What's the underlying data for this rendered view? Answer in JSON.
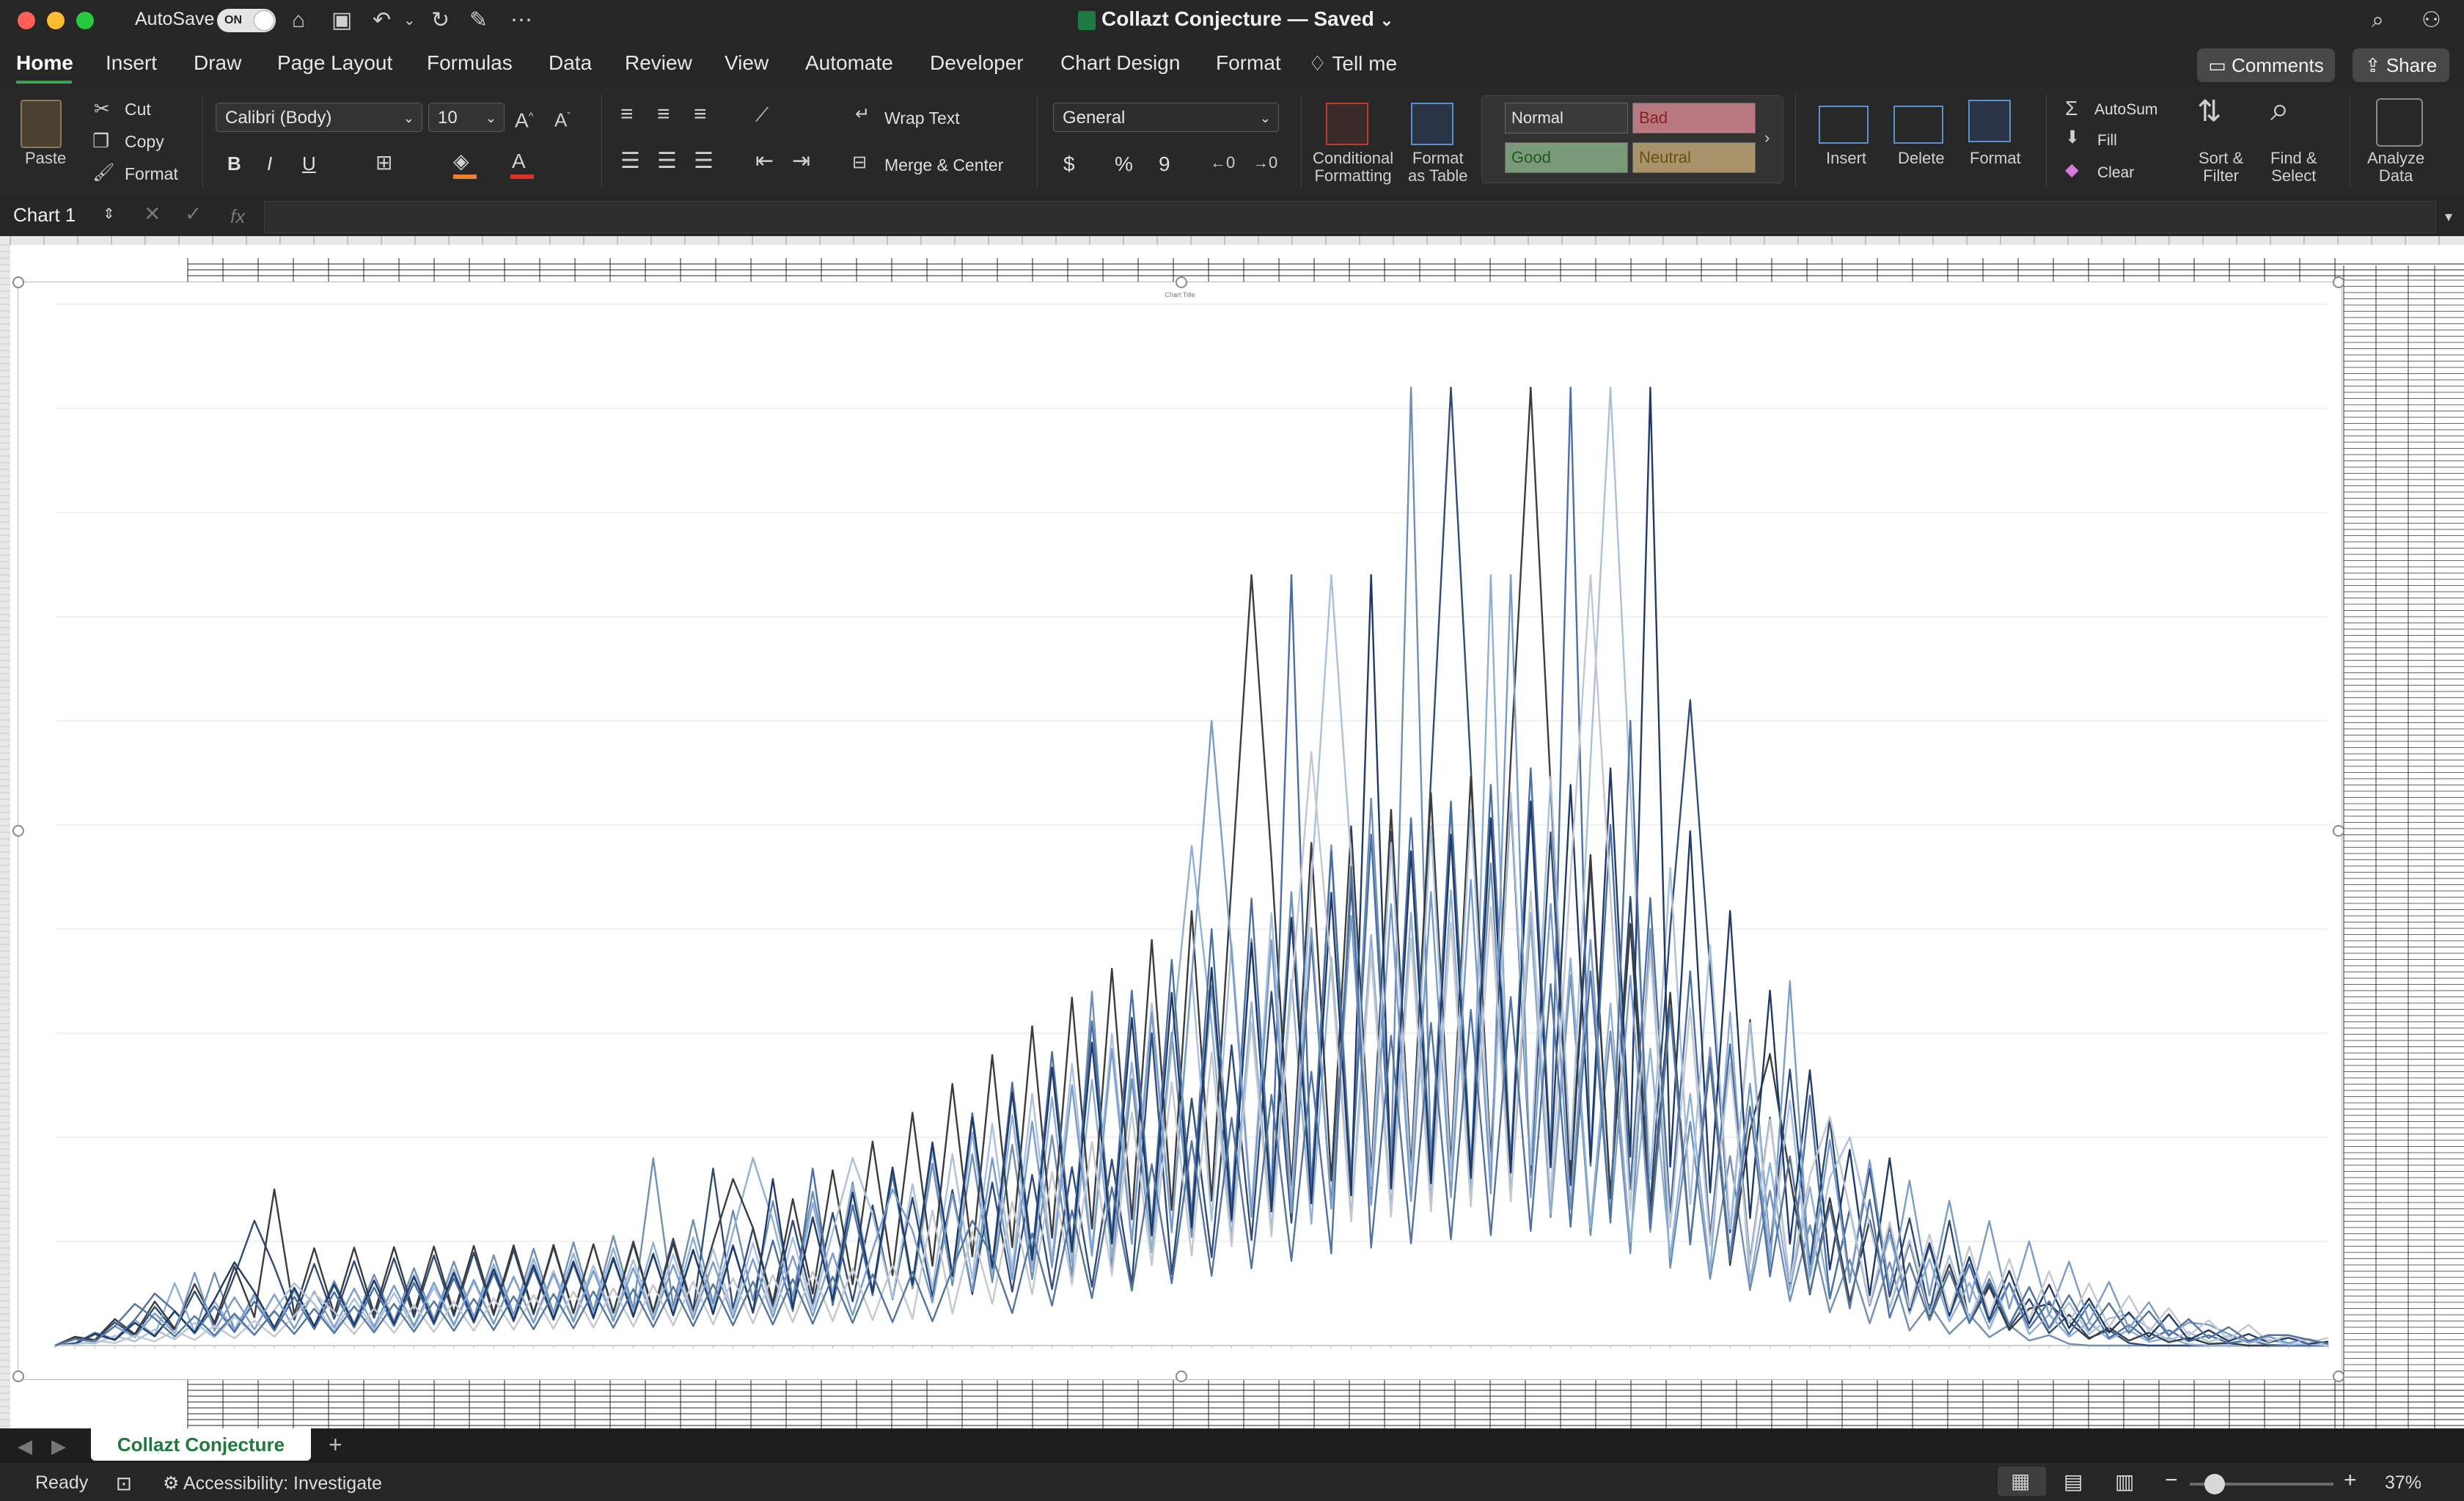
{
  "window": {
    "autosave_label": "AutoSave",
    "autosave_state": "ON",
    "doc_title": "Collazt Conjecture — Saved",
    "doc_title_caret": "⌄"
  },
  "tabs": [
    {
      "label": "Home",
      "active": true
    },
    {
      "label": "Insert"
    },
    {
      "label": "Draw"
    },
    {
      "label": "Page Layout"
    },
    {
      "label": "Formulas"
    },
    {
      "label": "Data"
    },
    {
      "label": "Review"
    },
    {
      "label": "View"
    },
    {
      "label": "Automate"
    },
    {
      "label": "Developer"
    },
    {
      "label": "Chart Design"
    },
    {
      "label": "Format"
    },
    {
      "label": "Tell me"
    }
  ],
  "top_buttons": {
    "comments": "Comments",
    "share": "Share"
  },
  "ribbon": {
    "paste": "Paste",
    "cut": "Cut",
    "copy": "Copy",
    "format_painter": "Format",
    "font_name": "Calibri (Body)",
    "font_size": "10",
    "bold": "B",
    "italic": "I",
    "underline": "U",
    "wrap_text": "Wrap Text",
    "merge_center": "Merge & Center",
    "number_format": "General",
    "currency": "$",
    "percent": "%",
    "comma": "9",
    "conditional_formatting": [
      "Conditional",
      "Formatting"
    ],
    "format_as_table": [
      "Format",
      "as Table"
    ],
    "styles": {
      "normal": "Normal",
      "bad": "Bad",
      "good": "Good",
      "neutral": "Neutral"
    },
    "insert": "Insert",
    "delete": "Delete",
    "format": "Format",
    "autosum": "AutoSum",
    "fill": "Fill",
    "clear": "Clear",
    "sort_filter": [
      "Sort &",
      "Filter"
    ],
    "find_select": [
      "Find &",
      "Select"
    ],
    "analyze_data": [
      "Analyze",
      "Data"
    ]
  },
  "formula_bar": {
    "name_box": "Chart 1",
    "fx": "fx",
    "value": ""
  },
  "chart_data": {
    "type": "line",
    "title": "Chart Title",
    "note": "Dozens of overlapping blue/grey series; values approximated in relative units (0-100 scale).",
    "x_count": 115,
    "ylim": [
      0,
      100
    ],
    "grid": true,
    "series": [
      {
        "name": "",
        "color": "#6f8fb5",
        "peaks": [
          [
            8,
            7
          ],
          [
            30,
            18
          ],
          [
            52,
            34
          ],
          [
            68,
            92
          ],
          [
            80,
            40
          ],
          [
            92,
            8
          ]
        ]
      },
      {
        "name": "",
        "color": "#2f4b78",
        "peaks": [
          [
            10,
            12
          ],
          [
            33,
            17
          ],
          [
            55,
            30
          ],
          [
            70,
            92
          ],
          [
            82,
            62
          ],
          [
            95,
            12
          ]
        ]
      },
      {
        "name": "",
        "color": "#8fb0d6",
        "peaks": [
          [
            6,
            6
          ],
          [
            35,
            18
          ],
          [
            57,
            48
          ],
          [
            72,
            74
          ],
          [
            84,
            32
          ],
          [
            98,
            6
          ]
        ]
      },
      {
        "name": "",
        "color": "#3c3c3c",
        "peaks": [
          [
            11,
            15
          ],
          [
            34,
            16
          ],
          [
            60,
            74
          ],
          [
            74,
            92
          ],
          [
            86,
            28
          ],
          [
            100,
            4
          ]
        ]
      },
      {
        "name": "",
        "color": "#4a6fa5",
        "peaks": [
          [
            5,
            5
          ],
          [
            38,
            17
          ],
          [
            62,
            74
          ],
          [
            76,
            92
          ],
          [
            88,
            24
          ],
          [
            102,
            4
          ]
        ]
      },
      {
        "name": "",
        "color": "#a9c1de",
        "peaks": [
          [
            12,
            6
          ],
          [
            40,
            18
          ],
          [
            64,
            74
          ],
          [
            78,
            92
          ],
          [
            90,
            20
          ],
          [
            104,
            3
          ]
        ]
      },
      {
        "name": "",
        "color": "#1f3a66",
        "peaks": [
          [
            9,
            8
          ],
          [
            36,
            16
          ],
          [
            66,
            74
          ],
          [
            80,
            92
          ],
          [
            92,
            18
          ],
          [
            106,
            3
          ]
        ]
      },
      {
        "name": "",
        "color": "#7a9ccb",
        "peaks": [
          [
            7,
            7
          ],
          [
            42,
            15
          ],
          [
            58,
            60
          ],
          [
            73,
            74
          ],
          [
            87,
            35
          ],
          [
            108,
            2
          ]
        ]
      },
      {
        "name": "",
        "color": "#c3c8d0",
        "peaks": [
          [
            13,
            5
          ],
          [
            44,
            13
          ],
          [
            63,
            57
          ],
          [
            77,
            74
          ],
          [
            89,
            22
          ],
          [
            110,
            2
          ]
        ]
      },
      {
        "name": "",
        "color": "#52749f",
        "peaks": [
          [
            4,
            4
          ],
          [
            46,
            12
          ],
          [
            65,
            46
          ],
          [
            79,
            60
          ],
          [
            91,
            14
          ],
          [
            112,
            1
          ]
        ]
      }
    ]
  },
  "sheet_tab": "Collazt Conjecture",
  "status": {
    "ready": "Ready",
    "accessibility": "Accessibility: Investigate",
    "zoom": "37%"
  }
}
